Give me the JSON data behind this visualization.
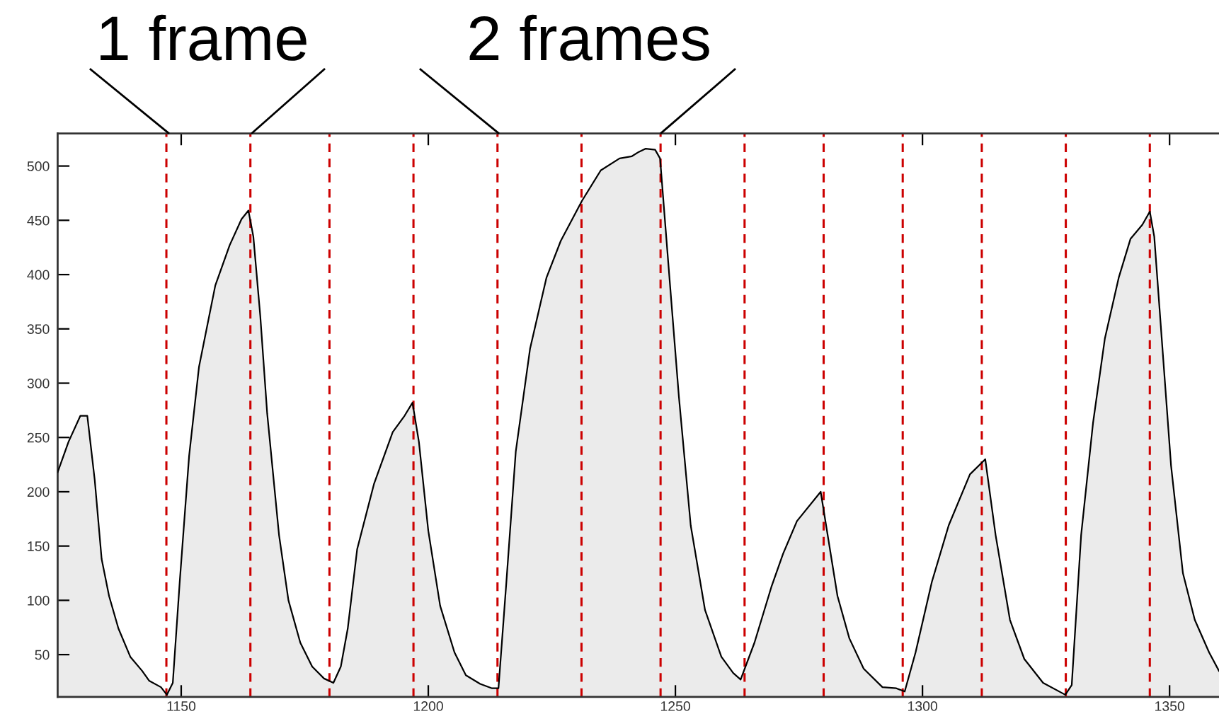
{
  "chart_data": {
    "type": "area",
    "x": [
      1125,
      1127.2,
      1129.6,
      1131,
      1132.5,
      1133.9,
      1135.4,
      1137.3,
      1139.7,
      1142.1,
      1143.5,
      1145.9,
      1147.1,
      1148.3,
      1149.7,
      1151.6,
      1153.6,
      1156.9,
      1159.8,
      1162.2,
      1163.6,
      1164.6,
      1166,
      1167.4,
      1169.8,
      1171.7,
      1174.1,
      1176.5,
      1178.9,
      1180.8,
      1182.3,
      1183.7,
      1185.6,
      1189,
      1192.8,
      1195.2,
      1196.8,
      1198.1,
      1200,
      1202.4,
      1205.3,
      1207.6,
      1210.5,
      1212.9,
      1214.2,
      1215.8,
      1217.7,
      1220.6,
      1223.9,
      1226.8,
      1231.1,
      1234.9,
      1238.7,
      1241.2,
      1242.6,
      1244,
      1245.9,
      1246.9,
      1248.8,
      1250.7,
      1253.1,
      1256,
      1259.3,
      1261.7,
      1263.2,
      1266,
      1269.4,
      1271.8,
      1274.6,
      1279.4,
      1282.8,
      1285.2,
      1288.1,
      1291.9,
      1294.7,
      1296.4,
      1298.6,
      1301.9,
      1305.3,
      1309.6,
      1312.7,
      1314.8,
      1317.7,
      1320.6,
      1324.4,
      1328.9,
      1330.2,
      1332.1,
      1334.5,
      1336.9,
      1339.7,
      1342.1,
      1344.5,
      1346,
      1346.9,
      1350.3,
      1352.7,
      1355.1,
      1358,
      1360
    ],
    "series": [
      {
        "color": "#ebebeb",
        "values": [
          218,
          246,
          270,
          270,
          211,
          138,
          104,
          74,
          48,
          35,
          26,
          20,
          13,
          24,
          117,
          233,
          315,
          390,
          427,
          451,
          459,
          435,
          362,
          272,
          160,
          100,
          61,
          39,
          28,
          24,
          39,
          74,
          147,
          207,
          255,
          270,
          282,
          246,
          164,
          95,
          52,
          31,
          23,
          19,
          19,
          117,
          237,
          332,
          397,
          431,
          468,
          496,
          507,
          509,
          513,
          516,
          515,
          507,
          397,
          288,
          169,
          91,
          48,
          33,
          27,
          61,
          112,
          143,
          173,
          200,
          104,
          65,
          37,
          20,
          19,
          16,
          52,
          117,
          169,
          216,
          230,
          160,
          82,
          46,
          24,
          13,
          22,
          160,
          263,
          341,
          397,
          433,
          446,
          458,
          435,
          224,
          125,
          82,
          52,
          35
        ]
      }
    ],
    "xlim": [
      1125,
      1360
    ],
    "xticks": [
      1150,
      1200,
      1250,
      1300,
      1350
    ],
    "ylim": [
      11,
      530
    ],
    "yticks": [
      50,
      100,
      150,
      200,
      250,
      300,
      350,
      400,
      450,
      500
    ],
    "ref_lines": [
      {
        "axis": "x",
        "value": 1147,
        "color": "#cc0000",
        "line_style": "dashed"
      },
      {
        "axis": "x",
        "value": 1164,
        "color": "#cc0000",
        "line_style": "dashed"
      },
      {
        "axis": "x",
        "value": 1180,
        "color": "#cc0000",
        "line_style": "dashed"
      },
      {
        "axis": "x",
        "value": 1197,
        "color": "#cc0000",
        "line_style": "dashed"
      },
      {
        "axis": "x",
        "value": 1214,
        "color": "#cc0000",
        "line_style": "dashed"
      },
      {
        "axis": "x",
        "value": 1231,
        "color": "#cc0000",
        "line_style": "dashed"
      },
      {
        "axis": "x",
        "value": 1247,
        "color": "#cc0000",
        "line_style": "dashed"
      },
      {
        "axis": "x",
        "value": 1264,
        "color": "#cc0000",
        "line_style": "dashed"
      },
      {
        "axis": "x",
        "value": 1280,
        "color": "#cc0000",
        "line_style": "dashed"
      },
      {
        "axis": "x",
        "value": 1296,
        "color": "#cc0000",
        "line_style": "dashed"
      },
      {
        "axis": "x",
        "value": 1312,
        "color": "#cc0000",
        "line_style": "dashed"
      },
      {
        "axis": "x",
        "value": 1329,
        "color": "#cc0000",
        "line_style": "dashed"
      },
      {
        "axis": "x",
        "value": 1346,
        "color": "#cc0000",
        "line_style": "dashed"
      }
    ],
    "annotations": [
      "1 frame",
      "2 frames"
    ]
  }
}
